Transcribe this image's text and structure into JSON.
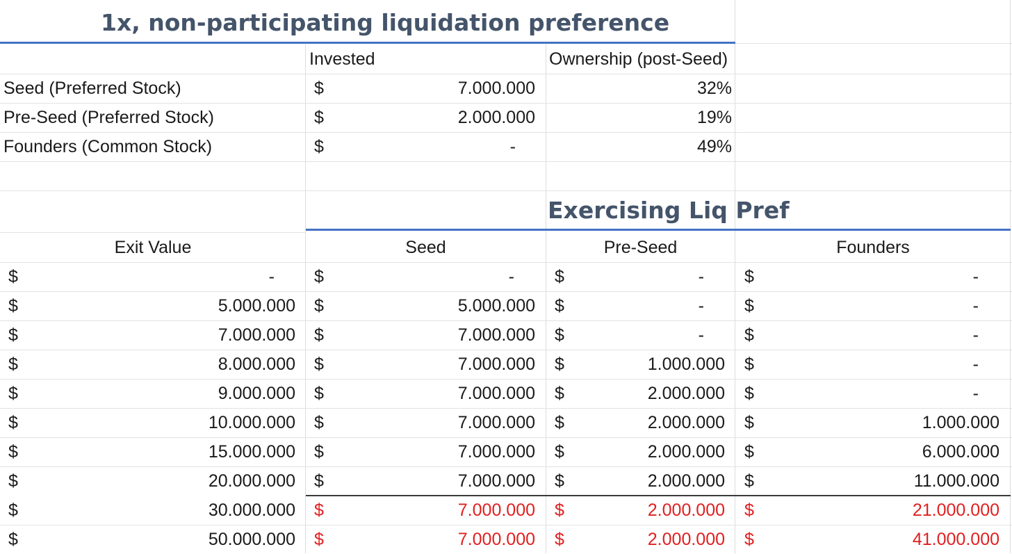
{
  "title": "1x, non-participating liquidation preference",
  "subtitle": "Exercising Liq Pref",
  "summary": {
    "headers": {
      "invested": "Invested",
      "ownership": "Ownership (post-Seed)"
    },
    "rows": [
      {
        "label": "Seed (Preferred Stock)",
        "currency": "$",
        "invested": "7.000.000",
        "ownership": "32%"
      },
      {
        "label": "Pre-Seed (Preferred Stock)",
        "currency": "$",
        "invested": "2.000.000",
        "ownership": "19%"
      },
      {
        "label": "Founders (Common Stock)",
        "currency": "$",
        "invested": "-",
        "ownership": "49%"
      }
    ]
  },
  "table": {
    "headers": {
      "exit": "Exit Value",
      "seed": "Seed",
      "preseed": "Pre-Seed",
      "founders": "Founders"
    },
    "currency": "$",
    "rows": [
      {
        "exit": "-",
        "seed": "-",
        "preseed": "-",
        "founders": "-",
        "highlight": false
      },
      {
        "exit": "5.000.000",
        "seed": "5.000.000",
        "preseed": "-",
        "founders": "-",
        "highlight": false
      },
      {
        "exit": "7.000.000",
        "seed": "7.000.000",
        "preseed": "-",
        "founders": "-",
        "highlight": false
      },
      {
        "exit": "8.000.000",
        "seed": "7.000.000",
        "preseed": "1.000.000",
        "founders": "-",
        "highlight": false
      },
      {
        "exit": "9.000.000",
        "seed": "7.000.000",
        "preseed": "2.000.000",
        "founders": "-",
        "highlight": false
      },
      {
        "exit": "10.000.000",
        "seed": "7.000.000",
        "preseed": "2.000.000",
        "founders": "1.000.000",
        "highlight": false
      },
      {
        "exit": "15.000.000",
        "seed": "7.000.000",
        "preseed": "2.000.000",
        "founders": "6.000.000",
        "highlight": false
      },
      {
        "exit": "20.000.000",
        "seed": "7.000.000",
        "preseed": "2.000.000",
        "founders": "11.000.000",
        "highlight": false
      },
      {
        "exit": "30.000.000",
        "seed": "7.000.000",
        "preseed": "2.000.000",
        "founders": "21.000.000",
        "highlight": true
      },
      {
        "exit": "50.000.000",
        "seed": "7.000.000",
        "preseed": "2.000.000",
        "founders": "41.000.000",
        "highlight": true
      }
    ]
  },
  "colors": {
    "title": "#44546a",
    "rule": "#4472c4",
    "highlight_text": "#e02020"
  }
}
